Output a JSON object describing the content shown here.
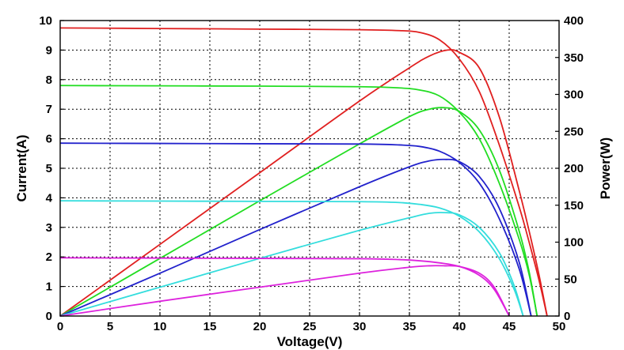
{
  "chart_data": {
    "type": "line",
    "title": "",
    "xlabel": "Voltage(V)",
    "ylabel_left": "Current(A)",
    "ylabel_right": "Power(W)",
    "xlim": [
      0,
      50
    ],
    "ylim_left": [
      0,
      10
    ],
    "ylim_right": [
      0,
      400
    ],
    "xticks": [
      0,
      5,
      10,
      15,
      20,
      25,
      30,
      35,
      40,
      45,
      50
    ],
    "yticks_left": [
      0,
      1,
      2,
      3,
      4,
      5,
      6,
      7,
      8,
      9,
      10
    ],
    "yticks_right": [
      0,
      50,
      100,
      150,
      200,
      250,
      300,
      350,
      400
    ],
    "grid": true,
    "legend": "none",
    "series": [
      {
        "color": "#e02020",
        "isc": 9.75,
        "voc": 48.8,
        "pmax_v": 38.8,
        "pmax": 360,
        "iv": [
          [
            0,
            9.75
          ],
          [
            10,
            9.73
          ],
          [
            20,
            9.71
          ],
          [
            30,
            9.69
          ],
          [
            34,
            9.66
          ],
          [
            36,
            9.6
          ],
          [
            38,
            9.35
          ],
          [
            40,
            8.7
          ],
          [
            42,
            7.6
          ],
          [
            44,
            5.8
          ],
          [
            46,
            3.7
          ],
          [
            47,
            2.5
          ],
          [
            48,
            1.2
          ],
          [
            48.8,
            0
          ]
        ],
        "pv": [
          [
            0,
            0
          ],
          [
            10,
            97
          ],
          [
            20,
            194
          ],
          [
            30,
            291
          ],
          [
            35,
            336
          ],
          [
            37,
            352
          ],
          [
            38.8,
            360
          ],
          [
            40,
            357
          ],
          [
            42,
            336
          ],
          [
            44,
            270
          ],
          [
            46,
            170
          ],
          [
            47,
            115
          ],
          [
            48,
            55
          ],
          [
            48.8,
            0
          ]
        ]
      },
      {
        "color": "#22dd22",
        "isc": 7.8,
        "voc": 47.8,
        "pmax_v": 38.5,
        "pmax": 282,
        "iv": [
          [
            0,
            7.8
          ],
          [
            10,
            7.79
          ],
          [
            20,
            7.78
          ],
          [
            30,
            7.76
          ],
          [
            34,
            7.72
          ],
          [
            36,
            7.65
          ],
          [
            38,
            7.45
          ],
          [
            40,
            6.9
          ],
          [
            42,
            6.0
          ],
          [
            44,
            4.5
          ],
          [
            46,
            2.6
          ],
          [
            47,
            1.4
          ],
          [
            47.8,
            0
          ]
        ],
        "pv": [
          [
            0,
            0
          ],
          [
            10,
            78
          ],
          [
            20,
            156
          ],
          [
            30,
            233
          ],
          [
            35,
            270
          ],
          [
            37,
            280
          ],
          [
            38.5,
            282
          ],
          [
            40,
            277
          ],
          [
            42,
            252
          ],
          [
            44,
            198
          ],
          [
            46,
            115
          ],
          [
            47,
            60
          ],
          [
            47.8,
            0
          ]
        ]
      },
      {
        "color": "#2222cc",
        "isc": 5.85,
        "voc": 47.2,
        "pmax_v": 38.5,
        "pmax": 212,
        "iv": [
          [
            0,
            5.85
          ],
          [
            10,
            5.84
          ],
          [
            20,
            5.83
          ],
          [
            30,
            5.82
          ],
          [
            34,
            5.79
          ],
          [
            36,
            5.74
          ],
          [
            38,
            5.58
          ],
          [
            40,
            5.2
          ],
          [
            42,
            4.5
          ],
          [
            44,
            3.3
          ],
          [
            46,
            1.6
          ],
          [
            47.2,
            0
          ]
        ],
        "pv": [
          [
            0,
            0
          ],
          [
            10,
            58
          ],
          [
            20,
            117
          ],
          [
            30,
            175
          ],
          [
            35,
            202
          ],
          [
            37,
            210
          ],
          [
            38.5,
            212
          ],
          [
            40,
            209
          ],
          [
            42,
            189
          ],
          [
            44,
            146
          ],
          [
            46,
            73
          ],
          [
            47.2,
            0
          ]
        ]
      },
      {
        "color": "#33dddd",
        "isc": 3.9,
        "voc": 46.4,
        "pmax_v": 38.5,
        "pmax": 140,
        "iv": [
          [
            0,
            3.9
          ],
          [
            10,
            3.89
          ],
          [
            20,
            3.88
          ],
          [
            30,
            3.87
          ],
          [
            34,
            3.84
          ],
          [
            36,
            3.78
          ],
          [
            38,
            3.66
          ],
          [
            40,
            3.38
          ],
          [
            42,
            2.85
          ],
          [
            44,
            1.95
          ],
          [
            45.5,
            0.9
          ],
          [
            46.4,
            0
          ]
        ],
        "pv": [
          [
            0,
            0
          ],
          [
            10,
            39
          ],
          [
            20,
            78
          ],
          [
            30,
            116
          ],
          [
            35,
            133
          ],
          [
            37,
            139
          ],
          [
            38.5,
            140
          ],
          [
            40,
            137
          ],
          [
            42,
            120
          ],
          [
            44,
            86
          ],
          [
            45.5,
            41
          ],
          [
            46.4,
            0
          ]
        ]
      },
      {
        "color": "#dd22dd",
        "isc": 1.97,
        "voc": 45.0,
        "pmax_v": 38.5,
        "pmax": 68,
        "iv": [
          [
            0,
            1.97
          ],
          [
            10,
            1.96
          ],
          [
            20,
            1.95
          ],
          [
            30,
            1.94
          ],
          [
            34,
            1.91
          ],
          [
            36,
            1.87
          ],
          [
            38,
            1.8
          ],
          [
            40,
            1.68
          ],
          [
            42,
            1.38
          ],
          [
            43.5,
            0.9
          ],
          [
            45,
            0
          ]
        ],
        "pv": [
          [
            0,
            0
          ],
          [
            10,
            20
          ],
          [
            20,
            39
          ],
          [
            30,
            58
          ],
          [
            35,
            66
          ],
          [
            37,
            68
          ],
          [
            38.5,
            68
          ],
          [
            40,
            67
          ],
          [
            42,
            58
          ],
          [
            43.5,
            39
          ],
          [
            45,
            0
          ]
        ]
      }
    ]
  }
}
